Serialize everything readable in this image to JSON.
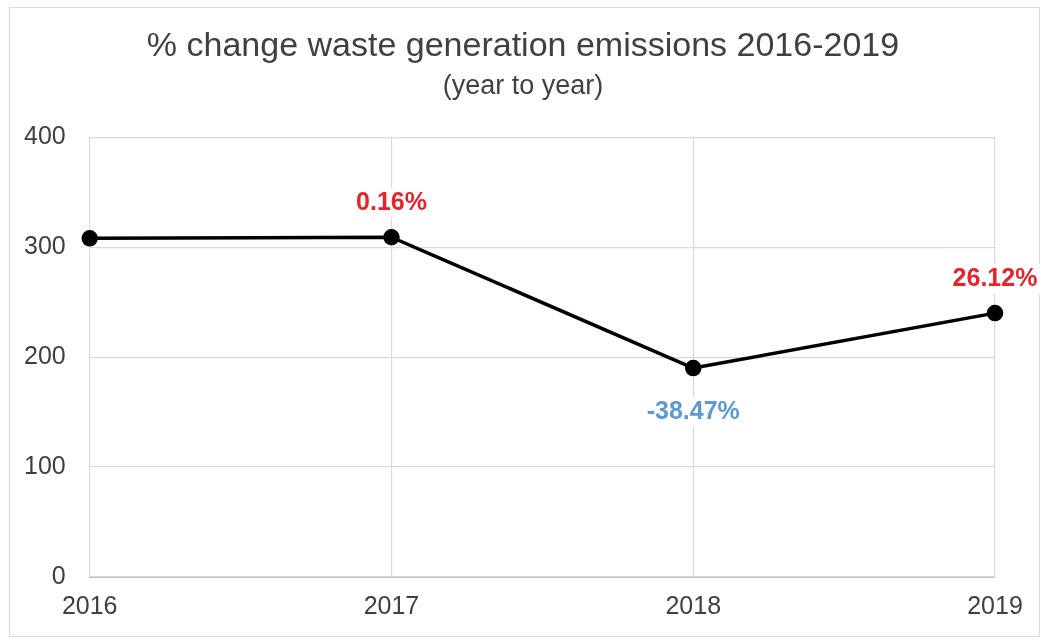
{
  "chart_data": {
    "type": "line",
    "title": "% change waste generation emissions 2016-2019",
    "subtitle": "(year to year)",
    "categories": [
      "2016",
      "2017",
      "2018",
      "2019"
    ],
    "values": [
      308,
      309,
      190,
      240
    ],
    "color": "#000000",
    "annotations": [
      {
        "text": "0.16%",
        "x": "2017",
        "y": 309
      },
      {
        "text": "-38.47%",
        "x": "2018",
        "y": 190
      },
      {
        "text": "26.12%",
        "x": "2019",
        "y": 240
      }
    ],
    "ylim": [
      0,
      400
    ],
    "yticks": [
      0,
      100,
      200,
      300,
      400
    ],
    "grid": true,
    "legend": false,
    "marker": "circle",
    "line_style": "solid"
  }
}
